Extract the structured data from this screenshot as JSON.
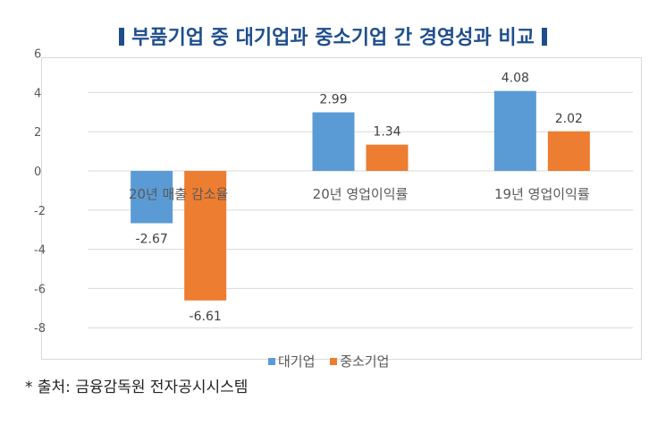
{
  "title": "부품기업 중 대기업과 중소기업 간 경영성과 비교",
  "source": "* 출처: 금융감독원 전자공시시스템",
  "chart_data": {
    "type": "bar",
    "title": "부품기업 중 대기업과 중소기업 간 경영성과 비교",
    "xlabel": "",
    "ylabel": "",
    "categories": [
      "20년 매출 감소율",
      "20년 영업이익률",
      "19년 영업이익률"
    ],
    "series": [
      {
        "name": "대기업",
        "color": "#5b9bd5",
        "values": [
          -2.67,
          2.99,
          4.08
        ]
      },
      {
        "name": "중소기업",
        "color": "#ed7d31",
        "values": [
          -6.61,
          1.34,
          2.02
        ]
      }
    ],
    "data_labels": [
      [
        "-2.67",
        "2.99",
        "4.08"
      ],
      [
        "-6.61",
        "1.34",
        "2.02"
      ]
    ],
    "ylim": [
      -8,
      6
    ],
    "yticks": [
      6,
      4,
      2,
      0,
      -2,
      -4,
      -6,
      -8
    ],
    "grid": true,
    "legend": "bottom"
  }
}
